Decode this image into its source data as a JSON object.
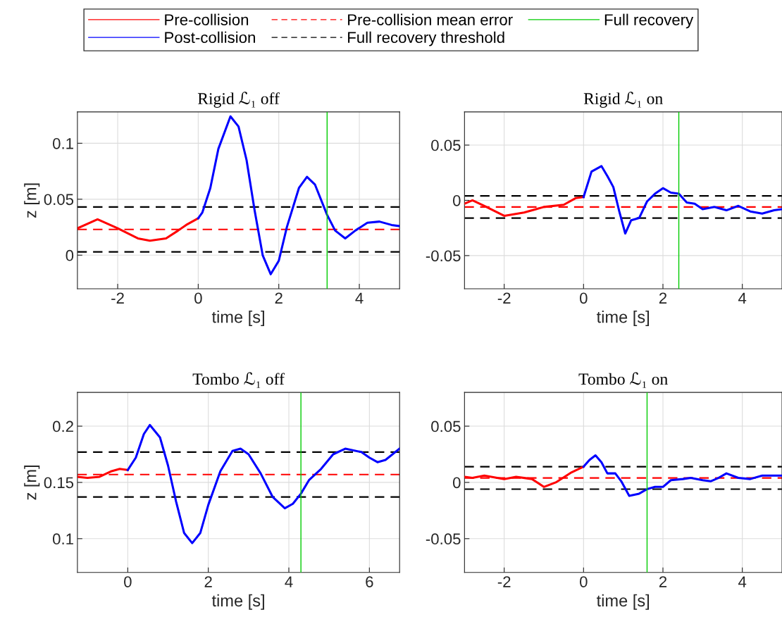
{
  "chart_data": [
    {
      "type": "line",
      "title": "Rigid ℒ₁ off",
      "xlabel": "time [s]",
      "ylabel": "z [m]",
      "legend": "top",
      "grid": true,
      "xlim": [
        -3,
        5
      ],
      "xticks": [
        -2,
        0,
        2,
        4
      ],
      "ylim": [
        -0.03,
        0.128
      ],
      "yticks": [
        0,
        0.05,
        0.1
      ],
      "series": [
        {
          "name": "Pre-collision",
          "color": "#ff0000",
          "x": [
            -3,
            -2.5,
            -2,
            -1.5,
            -1.2,
            -0.8,
            -0.5,
            -0.3,
            0
          ],
          "values": [
            0.024,
            0.032,
            0.024,
            0.015,
            0.013,
            0.015,
            0.022,
            0.027,
            0.033
          ]
        },
        {
          "name": "Post-collision",
          "color": "#0000ff",
          "x": [
            0,
            0.1,
            0.3,
            0.5,
            0.8,
            1,
            1.2,
            1.4,
            1.6,
            1.8,
            2,
            2.2,
            2.5,
            2.7,
            2.9,
            3.2,
            3.4,
            3.65,
            3.9,
            4.2,
            4.5,
            4.8,
            5
          ],
          "values": [
            0.033,
            0.038,
            0.06,
            0.095,
            0.124,
            0.115,
            0.085,
            0.04,
            0.0,
            -0.017,
            -0.005,
            0.025,
            0.06,
            0.07,
            0.063,
            0.036,
            0.022,
            0.015,
            0.022,
            0.029,
            0.03,
            0.027,
            0.026
          ]
        }
      ],
      "ref_lines": [
        {
          "axis": "y",
          "value": 0.023,
          "color": "#ff0000",
          "line_style": "dashed",
          "label": "Pre-collision mean error"
        },
        {
          "axis": "y",
          "value": 0.043,
          "color": "#000000",
          "line_style": "dashed",
          "label": "Full recovery threshold"
        },
        {
          "axis": "y",
          "value": 0.003,
          "color": "#000000",
          "line_style": "dashed"
        },
        {
          "axis": "x",
          "value": 3.2,
          "color": "#00cc00",
          "line_style": "solid",
          "label": "Full recovery"
        }
      ]
    },
    {
      "type": "line",
      "title": "Rigid ℒ₁ on",
      "xlabel": "time [s]",
      "grid": true,
      "xlim": [
        -3,
        5
      ],
      "xticks": [
        -2,
        0,
        2,
        4
      ],
      "ylim": [
        -0.08,
        0.08
      ],
      "yticks": [
        -0.05,
        0,
        0.05
      ],
      "series": [
        {
          "color": "#ff0000",
          "x": [
            -3,
            -2.8,
            -2.5,
            -2,
            -1.5,
            -1,
            -0.5,
            -0.2,
            0
          ],
          "values": [
            -0.003,
            0.0,
            -0.005,
            -0.014,
            -0.011,
            -0.006,
            -0.004,
            0.002,
            0.003
          ]
        },
        {
          "color": "#0000ff",
          "x": [
            0,
            0.2,
            0.45,
            0.6,
            0.75,
            0.9,
            1.05,
            1.2,
            1.4,
            1.6,
            1.8,
            2,
            2.2,
            2.4,
            2.6,
            2.8,
            3,
            3.3,
            3.6,
            3.9,
            4.2,
            4.5,
            4.8,
            5
          ],
          "values": [
            0.003,
            0.026,
            0.031,
            0.022,
            0.012,
            -0.01,
            -0.03,
            -0.018,
            -0.016,
            -0.001,
            0.006,
            0.011,
            0.007,
            0.006,
            -0.002,
            -0.003,
            -0.008,
            -0.006,
            -0.009,
            -0.005,
            -0.01,
            -0.012,
            -0.009,
            -0.008
          ]
        }
      ],
      "ref_lines": [
        {
          "axis": "y",
          "value": -0.006,
          "color": "#ff0000",
          "line_style": "dashed"
        },
        {
          "axis": "y",
          "value": 0.004,
          "color": "#000000",
          "line_style": "dashed"
        },
        {
          "axis": "y",
          "value": -0.016,
          "color": "#000000",
          "line_style": "dashed"
        },
        {
          "axis": "x",
          "value": 2.4,
          "color": "#00cc00",
          "line_style": "solid"
        }
      ]
    },
    {
      "type": "line",
      "title": "Tombo ℒ₁ off",
      "xlabel": "time [s]",
      "ylabel": "z [m]",
      "grid": true,
      "xlim": [
        -1.25,
        6.75
      ],
      "xticks": [
        0,
        2,
        4,
        6
      ],
      "ylim": [
        0.07,
        0.23
      ],
      "yticks": [
        0.1,
        0.15,
        0.2
      ],
      "series": [
        {
          "color": "#ff0000",
          "x": [
            -1.25,
            -1,
            -0.7,
            -0.4,
            -0.2,
            0
          ],
          "values": [
            0.155,
            0.154,
            0.155,
            0.16,
            0.162,
            0.161
          ]
        },
        {
          "color": "#0000ff",
          "x": [
            0,
            0.2,
            0.4,
            0.55,
            0.8,
            1,
            1.2,
            1.4,
            1.6,
            1.8,
            2,
            2.3,
            2.6,
            2.8,
            3,
            3.3,
            3.6,
            3.9,
            4.1,
            4.3,
            4.5,
            4.8,
            5.1,
            5.4,
            5.8,
            6,
            6.2,
            6.4,
            6.75
          ],
          "values": [
            0.161,
            0.172,
            0.193,
            0.201,
            0.19,
            0.165,
            0.133,
            0.105,
            0.096,
            0.105,
            0.13,
            0.16,
            0.178,
            0.18,
            0.175,
            0.158,
            0.137,
            0.127,
            0.131,
            0.14,
            0.152,
            0.162,
            0.175,
            0.18,
            0.177,
            0.172,
            0.168,
            0.17,
            0.18
          ]
        }
      ],
      "ref_lines": [
        {
          "axis": "y",
          "value": 0.157,
          "color": "#ff0000",
          "line_style": "dashed"
        },
        {
          "axis": "y",
          "value": 0.177,
          "color": "#000000",
          "line_style": "dashed"
        },
        {
          "axis": "y",
          "value": 0.137,
          "color": "#000000",
          "line_style": "dashed"
        },
        {
          "axis": "x",
          "value": 4.3,
          "color": "#00cc00",
          "line_style": "solid"
        }
      ]
    },
    {
      "type": "line",
      "title": "Tombo ℒ₁ on",
      "xlabel": "time [s]",
      "grid": true,
      "xlim": [
        -3,
        5
      ],
      "xticks": [
        -2,
        0,
        2,
        4
      ],
      "ylim": [
        -0.08,
        0.08
      ],
      "yticks": [
        -0.05,
        0,
        0.05
      ],
      "series": [
        {
          "color": "#ff0000",
          "x": [
            -3,
            -2.8,
            -2.5,
            -2,
            -1.7,
            -1.3,
            -1,
            -0.7,
            -0.3,
            0
          ],
          "values": [
            0.005,
            0.004,
            0.006,
            0.003,
            0.005,
            0.003,
            -0.004,
            0.0,
            0.009,
            0.014
          ]
        },
        {
          "color": "#0000ff",
          "x": [
            0,
            0.15,
            0.3,
            0.45,
            0.6,
            0.8,
            0.95,
            1.15,
            1.4,
            1.6,
            1.8,
            2,
            2.2,
            2.5,
            2.7,
            3,
            3.2,
            3.4,
            3.6,
            3.9,
            4.2,
            4.5,
            5
          ],
          "values": [
            0.014,
            0.02,
            0.024,
            0.018,
            0.008,
            0.008,
            0.001,
            -0.012,
            -0.01,
            -0.006,
            -0.004,
            -0.004,
            0.002,
            0.003,
            0.004,
            0.002,
            0.001,
            0.004,
            0.008,
            0.004,
            0.003,
            0.006,
            0.006
          ]
        }
      ],
      "ref_lines": [
        {
          "axis": "y",
          "value": 0.004,
          "color": "#ff0000",
          "line_style": "dashed"
        },
        {
          "axis": "y",
          "value": 0.014,
          "color": "#000000",
          "line_style": "dashed"
        },
        {
          "axis": "y",
          "value": -0.006,
          "color": "#000000",
          "line_style": "dashed"
        },
        {
          "axis": "x",
          "value": 1.6,
          "color": "#00cc00",
          "line_style": "solid"
        }
      ]
    }
  ]
}
